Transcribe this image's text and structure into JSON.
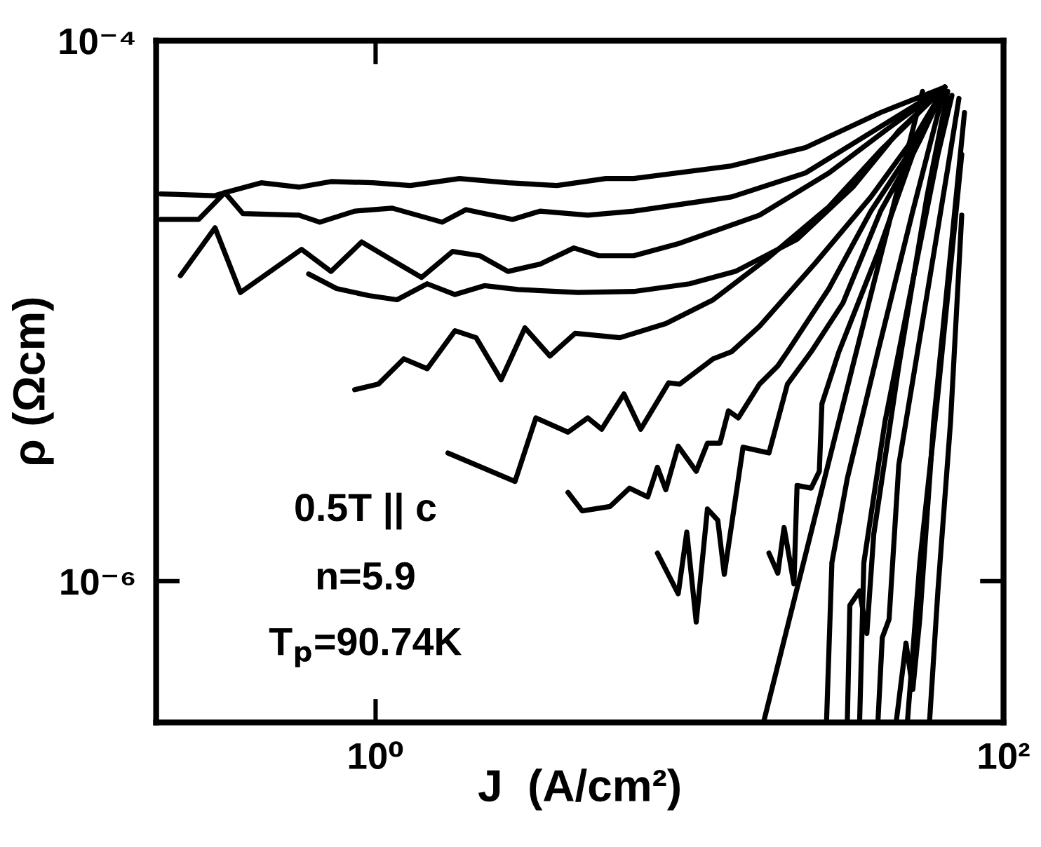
{
  "chart_data": {
    "type": "line",
    "xlabel": "J  (A/cm²)",
    "ylabel": "ρ (Ωcm)",
    "log": "xy",
    "line_style": "solid",
    "xlim": [
      0.2,
      100
    ],
    "ylim": [
      3e-07,
      0.0001
    ],
    "xticks": [
      {
        "value": 1,
        "label": "10⁰"
      },
      {
        "value": 100,
        "label": "10²"
      }
    ],
    "yticks": [
      {
        "value": 1e-06,
        "label": "10⁻⁶"
      },
      {
        "value": 0.0001,
        "label": "10⁻⁴"
      }
    ],
    "annotations": [
      "0.5T || c",
      "n=5.9",
      "T$_{p}$=90.74K"
    ],
    "series": [
      {
        "color": "#000000",
        "x": [
          0.207,
          0.308,
          0.331,
          0.432,
          0.57,
          0.721,
          0.98,
          1.29,
          1.85,
          2.64,
          3.78,
          5.41,
          6.64,
          13.6,
          23.4,
          40.6,
          65.0
        ],
        "values": [
          2.71e-05,
          2.67e-05,
          2.74e-05,
          2.98e-05,
          2.87e-05,
          3.01e-05,
          2.98e-05,
          2.91e-05,
          3.09e-05,
          2.98e-05,
          2.91e-05,
          3.09e-05,
          3.09e-05,
          3.44e-05,
          4.02e-05,
          5.42e-05,
          6.73e-05
        ]
      },
      {
        "color": "#000000",
        "x": [
          0.207,
          0.273,
          0.331,
          0.378,
          0.57,
          0.664,
          0.858,
          1.13,
          1.63,
          1.94,
          2.73,
          3.34,
          4.74,
          6.64,
          13.6,
          23.4,
          40.6,
          65.0
        ],
        "values": [
          2.18e-05,
          2.18e-05,
          2.74e-05,
          2.29e-05,
          2.26e-05,
          2.13e-05,
          2.34e-05,
          2.4e-05,
          2.13e-05,
          2.37e-05,
          2.18e-05,
          2.34e-05,
          2.26e-05,
          2.34e-05,
          2.64e-05,
          3.24e-05,
          4.81e-05,
          6.73e-05
        ]
      },
      {
        "color": "#000000",
        "x": [
          0.239,
          0.308,
          0.371,
          0.581,
          0.721,
          0.903,
          1.13,
          1.4,
          1.76,
          2.15,
          2.64,
          3.34,
          4.28,
          5.14,
          6.64,
          9.3,
          16.7,
          27.8,
          41.9,
          65.0
        ],
        "values": [
          1.35e-05,
          2.03e-05,
          1.17e-05,
          1.69e-05,
          1.4e-05,
          1.8e-05,
          1.54e-05,
          1.33e-05,
          1.66e-05,
          1.6e-05,
          1.4e-05,
          1.49e-05,
          1.71e-05,
          1.6e-05,
          1.6e-05,
          1.78e-05,
          2.26e-05,
          3.24e-05,
          4.64e-05,
          6.73e-05
        ]
      },
      {
        "color": "#000000",
        "x": [
          0.612,
          0.751,
          0.95,
          1.17,
          1.46,
          1.79,
          2.22,
          2.84,
          4.41,
          6.64,
          10,
          14.0,
          22.0,
          33.1,
          46.4,
          65.0
        ],
        "values": [
          1.37e-05,
          1.21e-05,
          1.14e-05,
          1.1e-05,
          1.26e-05,
          1.15e-05,
          1.24e-05,
          1.2e-05,
          1.17e-05,
          1.18e-05,
          1.26e-05,
          1.4e-05,
          1.84e-05,
          2.87e-05,
          4.64e-05,
          6.73e-05
        ]
      },
      {
        "color": "#000000",
        "x": [
          0.858,
          1.02,
          1.23,
          1.46,
          1.79,
          2.09,
          2.51,
          2.99,
          3.59,
          4.32,
          6.0,
          8.4,
          11.9,
          17.9,
          27.8,
          40.6,
          65.0
        ],
        "values": [
          5.11e-06,
          5.36e-06,
          6.65e-06,
          6.11e-06,
          8.45e-06,
          7.96e-06,
          5.56e-06,
          8.66e-06,
          6.81e-06,
          8.26e-06,
          7.96e-06,
          8.98e-06,
          1.1e-05,
          1.58e-05,
          2.43e-05,
          3.93e-05,
          6.73e-05
        ]
      },
      {
        "color": "#000000",
        "x": [
          1.7,
          2.78,
          3.24,
          4.1,
          4.74,
          5.25,
          6.18,
          6.99,
          8.58,
          9.3,
          11.9,
          13.6,
          16.7,
          25.1,
          37.8,
          53.0,
          65.0
        ],
        "values": [
          2.98e-06,
          2.34e-06,
          4.02e-06,
          3.56e-06,
          4.02e-06,
          3.65e-06,
          4.93e-06,
          3.65e-06,
          5.42e-06,
          5.36e-06,
          6.65e-06,
          7.06e-06,
          8.77e-06,
          1.5e-05,
          2.64e-05,
          4.53e-05,
          6.73e-05
        ]
      },
      {
        "color": "#000000",
        "x": [
          4.1,
          4.55,
          5.58,
          6.44,
          7.36,
          7.9,
          8.4,
          9.2,
          10.5,
          11.4,
          12.5,
          13.3,
          14.3,
          16.7,
          19.1,
          20.5,
          27.8,
          37.8,
          51.4,
          65.0
        ],
        "values": [
          2.13e-06,
          1.82e-06,
          1.89e-06,
          2.21e-06,
          2.05e-06,
          2.64e-06,
          2.18e-06,
          3.16e-06,
          2.55e-06,
          3.24e-06,
          3.24e-06,
          4.27e-06,
          4.02e-06,
          5.36e-06,
          6.26e-06,
          7.06e-06,
          1.21e-05,
          2.34e-05,
          4.02e-05,
          6.73e-05
        ]
      },
      {
        "color": "#000000",
        "x": [
          7.9,
          9.2,
          9.8,
          10.5,
          11.4,
          12.3,
          12.9,
          14.8,
          17.9,
          20.5,
          24.4,
          30.8,
          40.6,
          54.1,
          65.0
        ],
        "values": [
          1.27e-06,
          8.98e-07,
          1.52e-06,
          7.06e-07,
          1.85e-06,
          1.68e-06,
          1.06e-06,
          3.13e-06,
          2.98e-06,
          5.36e-06,
          7.06e-06,
          1.07e-05,
          2.34e-05,
          4.27e-05,
          6.73e-05
        ]
      },
      {
        "color": "#000000",
        "x": [
          17.9,
          19.1,
          20.0,
          21.5,
          22.0,
          24.4,
          25.9,
          26.4,
          29.9,
          39.8,
          51.4,
          65.0
        ],
        "values": [
          1.27e-06,
          1.07e-06,
          1.58e-06,
          9.77e-07,
          2.26e-06,
          2.21e-06,
          2.55e-06,
          4.53e-06,
          7.06e-06,
          1.64e-05,
          3.79e-05,
          6.73e-05
        ]
      },
      {
        "color": "#000000",
        "x": [
          17.2,
          33.1,
          55.2
        ],
        "values": [
          3e-07,
          6.26e-06,
          6.49e-05
        ]
      },
      {
        "color": "#000000",
        "x": [
          27.3,
          28.4,
          31.8,
          39.8,
          51.4,
          65.0
        ],
        "values": [
          3e-07,
          1.17e-06,
          2.4e-06,
          7.06e-06,
          2.34e-05,
          6.73e-05
        ]
      },
      {
        "color": "#000000",
        "x": [
          31.8,
          32.4,
          34.8,
          36.7,
          38.6,
          46.4,
          57.0,
          66.4
        ],
        "values": [
          3e-07,
          8.14e-07,
          9.2e-07,
          6.41e-07,
          1.49e-06,
          6.26e-06,
          2.64e-05,
          6.49e-05
        ]
      },
      {
        "color": "#000000",
        "x": [
          34.8,
          35.9,
          41.9,
          51.4,
          61.8,
          68.5
        ],
        "values": [
          3e-07,
          1.17e-06,
          3.88e-06,
          1.29e-05,
          3.79e-05,
          6.27e-05
        ]
      },
      {
        "color": "#000000",
        "x": [
          39.8,
          41.1,
          43.2,
          46.4,
          57.0,
          66.4,
          72.1
        ],
        "values": [
          3e-07,
          6.19e-07,
          7.23e-07,
          2.7e-06,
          1.14e-05,
          3.36e-05,
          6.11e-05
        ]
      },
      {
        "color": "#000000",
        "x": [
          45.5,
          48.9,
          51.4,
          54.1,
          59.9,
          68.5,
          75.1
        ],
        "values": [
          3e-07,
          5.9e-07,
          3.97e-07,
          7.23e-07,
          3.88e-06,
          1.84e-05,
          5.42e-05
        ]
      },
      {
        "color": "#000000",
        "x": [
          49.4,
          54.1,
          61.8,
          73.6
        ],
        "values": [
          3e-07,
          1.17e-06,
          4.93e-06,
          3.79e-05
        ]
      },
      {
        "color": "#000000",
        "x": [
          58.1,
          61.8,
          67.8,
          73.6
        ],
        "values": [
          3e-07,
          9.2e-07,
          3.88e-06,
          2.26e-05
        ]
      }
    ]
  }
}
